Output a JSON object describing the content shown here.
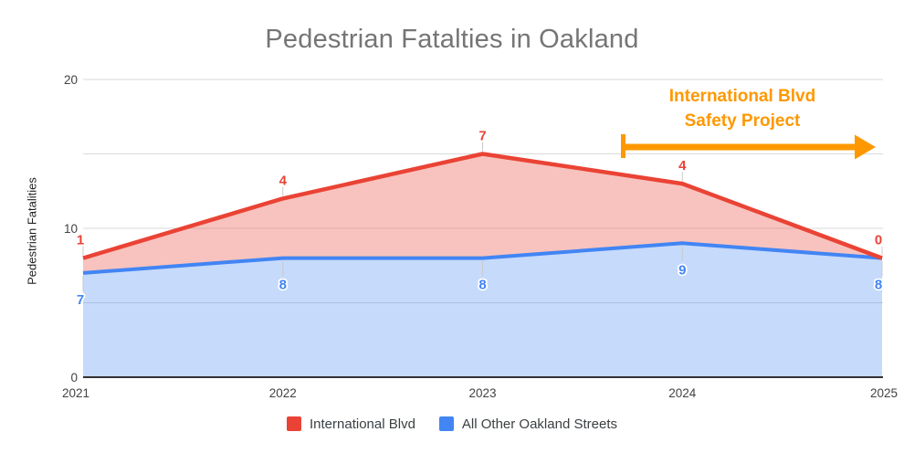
{
  "title": "Pedestrian Fatalties in Oakland",
  "axes": {
    "y_title": "Pedestrian Fatalities",
    "y_tick_values": [
      0,
      10,
      20
    ],
    "x_ticks": [
      "2021",
      "2022",
      "2023",
      "2024",
      "2025"
    ]
  },
  "legend": [
    {
      "label": "International Blvd",
      "color": "#EA4335"
    },
    {
      "label": "All Other Oakland Streets",
      "color": "#4285F4"
    }
  ],
  "annotation": {
    "line1": "International Blvd",
    "line2": "Safety Project",
    "color": "#FF9800"
  },
  "colors": {
    "red_line": "#EA4335",
    "red_fill": "rgba(234,67,53,0.32)",
    "blue_line": "#4285F4",
    "blue_fill": "rgba(66,133,244,0.30)",
    "gridline": "#dadada",
    "baseline": "#333333",
    "leader": "#c9c9c9",
    "tick_text": "#424242",
    "title_text": "#757575"
  },
  "chart_data": {
    "type": "area",
    "stacked": true,
    "categories": [
      2021,
      2022,
      2023,
      2024,
      2025
    ],
    "series": [
      {
        "name": "International Blvd",
        "color": "#EA4335",
        "values": [
          1,
          4,
          7,
          4,
          0
        ]
      },
      {
        "name": "All Other Oakland Streets",
        "color": "#4285F4",
        "values": [
          7,
          8,
          8,
          9,
          8
        ]
      }
    ],
    "stacked_totals": [
      8,
      12,
      15,
      13,
      8
    ],
    "title": "Pedestrian Fatalties in Oakland",
    "xlabel": "",
    "ylabel": "Pedestrian Fatalities",
    "ylim": [
      0,
      20
    ],
    "gridline_step": 5,
    "labeled_y_ticks": [
      0,
      10,
      20
    ],
    "grid": true,
    "legend_position": "bottom",
    "annotation": {
      "text": "International Blvd Safety Project",
      "arrow_x_span_categories": [
        2023.7,
        2025
      ],
      "arrow_y_value": 15.5
    }
  }
}
